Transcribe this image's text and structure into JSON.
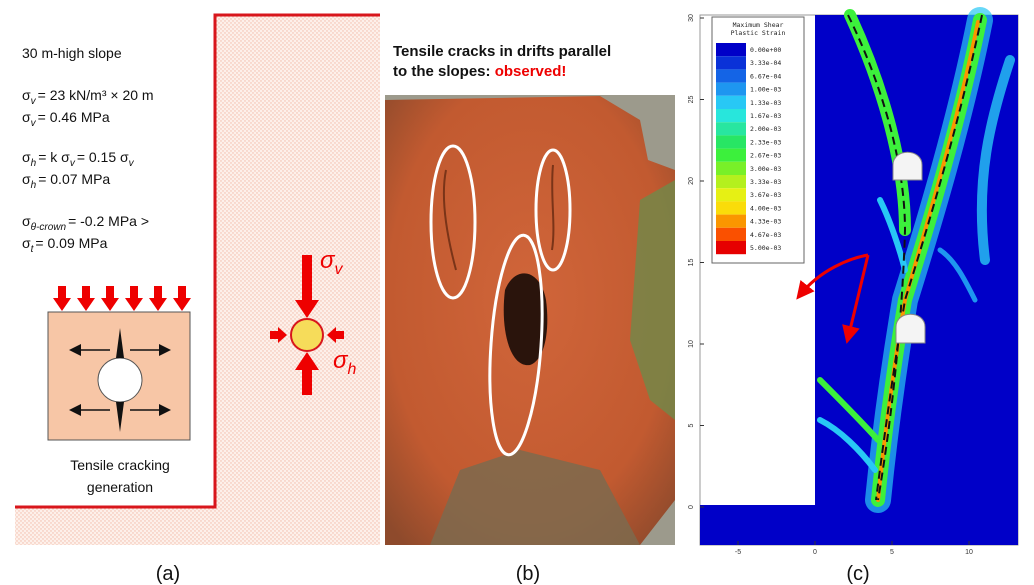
{
  "panel_a": {
    "lines": [
      [
        "30 m-high slope"
      ],
      [
        "σ",
        "v",
        "= 23 kN/m³ × 20 m"
      ],
      [
        "σ",
        "v",
        "= 0.46 MPa"
      ],
      [
        "σ",
        "h",
        "= k σ",
        "v",
        "= 0.15 σ",
        "v"
      ],
      [
        "σ",
        "h",
        "= 0.07 MPa"
      ],
      [
        "σ",
        "θ-crown",
        "= -0.2 MPa >"
      ],
      [
        "σ",
        "t",
        "= 0.09 MPa"
      ]
    ],
    "sigma_v": [
      "σ",
      "v"
    ],
    "sigma_h": [
      "σ",
      "h"
    ],
    "box_caption": [
      "Tensile cracking",
      "generation"
    ],
    "caption": "(a)"
  },
  "panel_b": {
    "title_line1": "Tensile cracks in drifts parallel",
    "title_line2": "to the slopes:",
    "highlight": "observed!",
    "caption": "(b)"
  },
  "panel_c": {
    "legend_title": [
      "Maximum Shear",
      "Plastic Strain"
    ],
    "legend": [
      {
        "label": "0.00e+00",
        "color": "#0000c8"
      },
      {
        "label": "3.33e-04",
        "color": "#0a32d8"
      },
      {
        "label": "6.67e-04",
        "color": "#1464e6"
      },
      {
        "label": "1.00e-03",
        "color": "#1e96f0"
      },
      {
        "label": "1.33e-03",
        "color": "#28c8f5"
      },
      {
        "label": "1.67e-03",
        "color": "#28e6dc"
      },
      {
        "label": "2.00e-03",
        "color": "#28e6a0"
      },
      {
        "label": "2.33e-03",
        "color": "#28e664"
      },
      {
        "label": "2.67e-03",
        "color": "#3cf03c"
      },
      {
        "label": "3.00e-03",
        "color": "#78f028"
      },
      {
        "label": "3.33e-03",
        "color": "#b4f01e"
      },
      {
        "label": "3.67e-03",
        "color": "#e6f014"
      },
      {
        "label": "4.00e-03",
        "color": "#fadc0a"
      },
      {
        "label": "4.33e-03",
        "color": "#fa9600"
      },
      {
        "label": "4.67e-03",
        "color": "#fa5000"
      },
      {
        "label": "5.00e-03",
        "color": "#e60000"
      }
    ],
    "yticks": [
      0,
      5,
      10,
      15,
      20,
      25,
      30
    ],
    "xticks": [
      -5,
      0,
      5,
      10
    ],
    "caption": "(c)"
  }
}
